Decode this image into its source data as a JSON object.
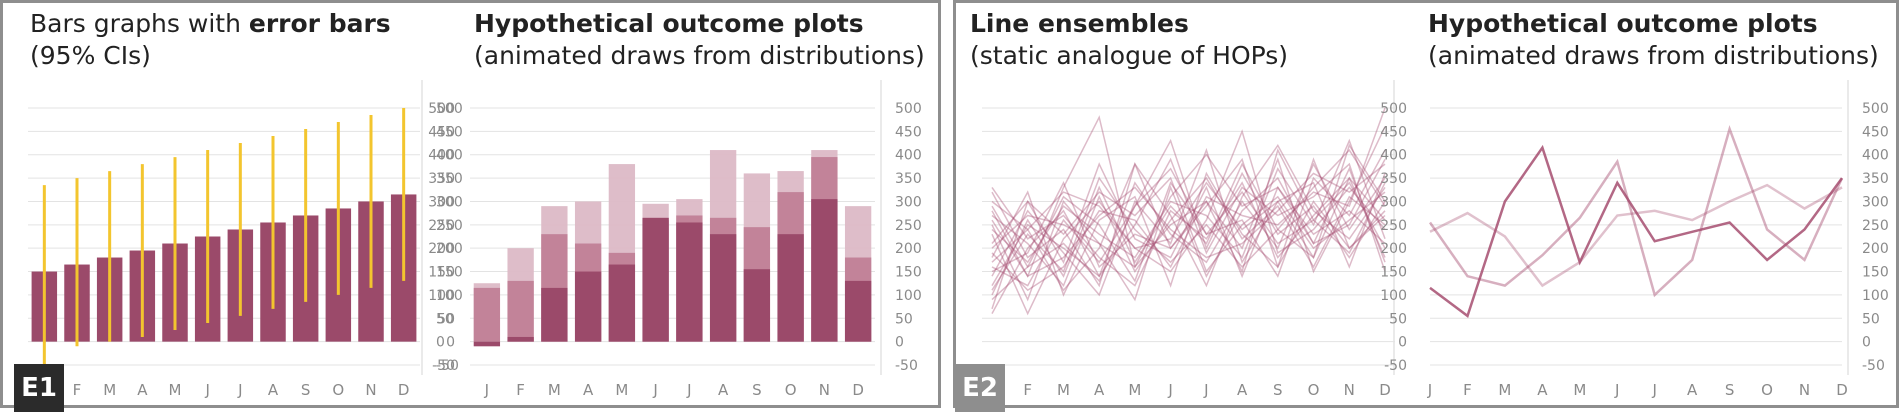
{
  "colors": {
    "bar": "#9b4a6a",
    "bar_light": "#c07f97",
    "bar_lighter": "#dcb9c6",
    "error": "#f3c52e",
    "line": "#a64d70",
    "grid": "#e3e3e3",
    "tick": "#8a8a8a",
    "frame": "#8e8e8e",
    "tag_e1": "#2b2b2b",
    "tag_e2": "#8e8e8e"
  },
  "panels": {
    "e1": {
      "tag": "E1"
    },
    "e2": {
      "tag": "E2"
    }
  },
  "chart_data": [
    {
      "id": "bars-error",
      "type": "bar",
      "title_lines": [
        "Bars graphs with ",
        "error bars",
        "(95% CIs)"
      ],
      "categories": [
        "J",
        "F",
        "M",
        "A",
        "M",
        "J",
        "J",
        "A",
        "S",
        "O",
        "N",
        "D"
      ],
      "values": [
        150,
        165,
        180,
        195,
        210,
        225,
        240,
        255,
        270,
        285,
        300,
        315
      ],
      "ci_low": [
        -50,
        -10,
        0,
        10,
        25,
        40,
        55,
        70,
        85,
        100,
        115,
        130
      ],
      "ci_high": [
        335,
        350,
        365,
        380,
        395,
        410,
        425,
        440,
        455,
        470,
        485,
        500
      ],
      "ylim": [
        -50,
        500
      ],
      "yticks": [
        -50,
        0,
        50,
        100,
        150,
        200,
        250,
        300,
        350,
        400,
        450,
        500
      ],
      "grid": true
    },
    {
      "id": "hops-bars",
      "type": "bar",
      "title_lines": [
        "Hypothetical outcome plots",
        "(animated draws from distributions)"
      ],
      "categories": [
        "J",
        "F",
        "M",
        "A",
        "M",
        "J",
        "J",
        "A",
        "S",
        "O",
        "N",
        "D"
      ],
      "draws": [
        [
          -10,
          10,
          115,
          150,
          165,
          265,
          255,
          230,
          155,
          230,
          305,
          130
        ],
        [
          115,
          130,
          230,
          210,
          190,
          260,
          270,
          265,
          245,
          320,
          395,
          180
        ],
        [
          125,
          200,
          290,
          300,
          380,
          295,
          305,
          410,
          360,
          365,
          410,
          290
        ]
      ],
      "ylim": [
        -50,
        500
      ],
      "yticks": [
        -50,
        0,
        50,
        100,
        150,
        200,
        250,
        300,
        350,
        400,
        450,
        500
      ],
      "grid": true
    },
    {
      "id": "line-ensembles",
      "type": "line",
      "title_lines": [
        "Line ensembles",
        "(static analogue of HOPs)"
      ],
      "categories": [
        "J",
        "F",
        "M",
        "A",
        "M",
        "J",
        "J",
        "A",
        "S",
        "O",
        "N",
        "D"
      ],
      "ylim": [
        -50,
        500
      ],
      "grid": true,
      "series": [
        {
          "values": [
            320,
            180,
            240,
            120,
            380,
            200,
            300,
            150,
            410,
            260,
            340,
            200
          ]
        },
        {
          "values": [
            100,
            260,
            140,
            330,
            170,
            290,
            210,
            380,
            240,
            180,
            420,
            300
          ]
        },
        {
          "values": [
            250,
            90,
            300,
            210,
            90,
            330,
            140,
            280,
            350,
            210,
            250,
            390
          ]
        },
        {
          "values": [
            180,
            320,
            100,
            260,
            310,
            120,
            360,
            230,
            160,
            390,
            200,
            280
          ]
        },
        {
          "values": [
            60,
            200,
            280,
            140,
            250,
            390,
            190,
            330,
            270,
            310,
            380,
            150
          ]
        },
        {
          "values": [
            280,
            140,
            330,
            480,
            160,
            250,
            300,
            200,
            390,
            150,
            300,
            460
          ]
        },
        {
          "values": [
            140,
            280,
            190,
            100,
            300,
            210,
            410,
            170,
            300,
            340,
            160,
            360
          ]
        },
        {
          "values": [
            230,
            60,
            220,
            300,
            200,
            150,
            260,
            450,
            190,
            240,
            330,
            240
          ]
        },
        {
          "values": [
            300,
            240,
            110,
            200,
            380,
            270,
            120,
            310,
            420,
            280,
            220,
            330
          ]
        },
        {
          "values": [
            90,
            160,
            310,
            250,
            130,
            340,
            230,
            260,
            140,
            350,
            270,
            410
          ]
        },
        {
          "values": [
            210,
            300,
            170,
            380,
            220,
            180,
            330,
            140,
            330,
            210,
            370,
            170
          ]
        },
        {
          "values": [
            160,
            120,
            260,
            170,
            290,
            430,
            200,
            360,
            230,
            290,
            180,
            300
          ]
        },
        {
          "values": [
            270,
            210,
            120,
            310,
            150,
            260,
            350,
            220,
            290,
            160,
            310,
            250
          ]
        },
        {
          "values": [
            120,
            250,
            200,
            140,
            340,
            230,
            170,
            300,
            200,
            380,
            240,
            350
          ]
        },
        {
          "values": [
            240,
            170,
            290,
            230,
            180,
            300,
            270,
            180,
            370,
            250,
            430,
            220
          ]
        },
        {
          "values": [
            190,
            110,
            160,
            280,
            260,
            160,
            310,
            270,
            250,
            320,
            290,
            500
          ]
        },
        {
          "values": [
            330,
            220,
            270,
            180,
            120,
            280,
            220,
            340,
            180,
            270,
            350,
            180
          ]
        },
        {
          "values": [
            70,
            300,
            230,
            320,
            270,
            350,
            150,
            250,
            310,
            200,
            260,
            320
          ]
        },
        {
          "values": [
            150,
            190,
            340,
            160,
            230,
            200,
            290,
            390,
            160,
            300,
            200,
            270
          ]
        },
        {
          "values": [
            260,
            140,
            180,
            270,
            330,
            240,
            180,
            210,
            280,
            360,
            320,
            380
          ]
        },
        {
          "values": [
            200,
            270,
            250,
            210,
            160,
            310,
            400,
            290,
            330,
            230,
            280,
            210
          ]
        },
        {
          "values": [
            110,
            230,
            150,
            350,
            240,
            170,
            250,
            160,
            240,
            330,
            410,
            290
          ]
        },
        {
          "values": [
            290,
            160,
            210,
            130,
            290,
            370,
            230,
            320,
            210,
            260,
            190,
            340
          ]
        },
        {
          "values": [
            170,
            240,
            320,
            290,
            200,
            220,
            340,
            240,
            300,
            180,
            350,
            260
          ]
        }
      ]
    },
    {
      "id": "hops-lines",
      "type": "line",
      "title_lines": [
        "Hypothetical outcome plots",
        "(animated draws from distributions)"
      ],
      "categories": [
        "J",
        "F",
        "M",
        "A",
        "M",
        "J",
        "J",
        "A",
        "S",
        "O",
        "N",
        "D"
      ],
      "ylim": [
        -50,
        500
      ],
      "yticks": [
        -50,
        0,
        50,
        100,
        150,
        200,
        250,
        300,
        350,
        400,
        450,
        500
      ],
      "grid": true,
      "series": [
        {
          "values": [
            115,
            55,
            300,
            415,
            170,
            340,
            215,
            235,
            255,
            175,
            240,
            350
          ],
          "shade": 0
        },
        {
          "values": [
            255,
            140,
            120,
            185,
            265,
            385,
            100,
            175,
            455,
            240,
            175,
            350
          ],
          "shade": 1
        },
        {
          "values": [
            235,
            275,
            225,
            120,
            170,
            270,
            280,
            260,
            300,
            335,
            285,
            330
          ],
          "shade": 2
        }
      ]
    }
  ]
}
